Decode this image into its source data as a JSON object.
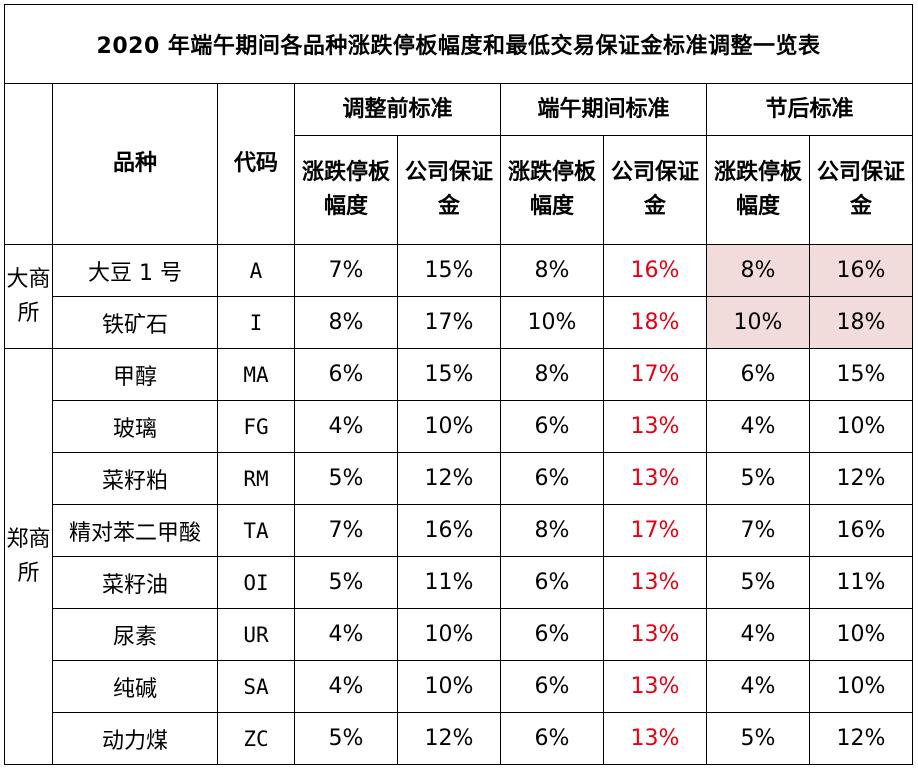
{
  "title": "2020 年端午期间各品种涨跌停板幅度和最低交易保证金标准调整一览表",
  "headers": {
    "variety": "品种",
    "code": "代码",
    "group_before": "调整前标准",
    "group_during": "端午期间标准",
    "group_after": "节后标准",
    "limit": "涨跌停板幅度",
    "margin": "公司保证金"
  },
  "exchanges": {
    "dce": "大商所",
    "zce": "郑商所"
  },
  "rows": [
    {
      "exchange": "dce",
      "name": "大豆 1 号",
      "code": "A",
      "before_limit": "7%",
      "before_margin": "15%",
      "during_limit": "8%",
      "during_margin": "16%",
      "after_limit": "8%",
      "after_margin": "16%"
    },
    {
      "exchange": "dce",
      "name": "铁矿石",
      "code": "I",
      "before_limit": "8%",
      "before_margin": "17%",
      "during_limit": "10%",
      "during_margin": "18%",
      "after_limit": "10%",
      "after_margin": "18%"
    },
    {
      "exchange": "zce",
      "name": "甲醇",
      "code": "MA",
      "before_limit": "6%",
      "before_margin": "15%",
      "during_limit": "8%",
      "during_margin": "17%",
      "after_limit": "6%",
      "after_margin": "15%"
    },
    {
      "exchange": "zce",
      "name": "玻璃",
      "code": "FG",
      "before_limit": "4%",
      "before_margin": "10%",
      "during_limit": "6%",
      "during_margin": "13%",
      "after_limit": "4%",
      "after_margin": "10%"
    },
    {
      "exchange": "zce",
      "name": "菜籽粕",
      "code": "RM",
      "before_limit": "5%",
      "before_margin": "12%",
      "during_limit": "6%",
      "during_margin": "13%",
      "after_limit": "5%",
      "after_margin": "12%"
    },
    {
      "exchange": "zce",
      "name": "精对苯二甲酸",
      "code": "TA",
      "before_limit": "7%",
      "before_margin": "16%",
      "during_limit": "8%",
      "during_margin": "17%",
      "after_limit": "7%",
      "after_margin": "16%"
    },
    {
      "exchange": "zce",
      "name": "菜籽油",
      "code": "OI",
      "before_limit": "5%",
      "before_margin": "11%",
      "during_limit": "6%",
      "during_margin": "13%",
      "after_limit": "5%",
      "after_margin": "11%"
    },
    {
      "exchange": "zce",
      "name": "尿素",
      "code": "UR",
      "before_limit": "4%",
      "before_margin": "10%",
      "during_limit": "6%",
      "during_margin": "13%",
      "after_limit": "4%",
      "after_margin": "10%"
    },
    {
      "exchange": "zce",
      "name": "纯碱",
      "code": "SA",
      "before_limit": "4%",
      "before_margin": "10%",
      "during_limit": "6%",
      "during_margin": "13%",
      "after_limit": "4%",
      "after_margin": "10%"
    },
    {
      "exchange": "zce",
      "name": "动力煤",
      "code": "ZC",
      "before_limit": "5%",
      "before_margin": "12%",
      "during_limit": "6%",
      "during_margin": "13%",
      "after_limit": "5%",
      "after_margin": "12%"
    }
  ],
  "colors": {
    "highlight_text": "#e60012",
    "highlight_fill": "#f2dcdb",
    "border": "#000000"
  }
}
